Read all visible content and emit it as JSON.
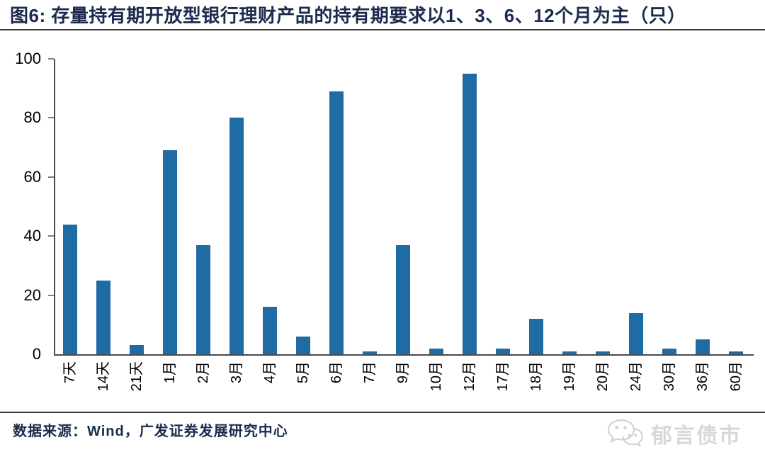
{
  "header": {
    "title": "图6: 存量持有期开放型银行理财产品的持有期要求以1、3、6、12个月为主（只）"
  },
  "chart_data": {
    "type": "bar",
    "title": "存量持有期开放型银行理财产品的持有期要求以1、3、6、12个月为主（只）",
    "categories": [
      "7天",
      "14天",
      "21天",
      "1月",
      "2月",
      "3月",
      "4月",
      "5月",
      "6月",
      "7月",
      "9月",
      "10月",
      "12月",
      "17月",
      "18月",
      "19月",
      "20月",
      "24月",
      "30月",
      "36月",
      "60月"
    ],
    "values": [
      44,
      25,
      3,
      69,
      37,
      80,
      16,
      6,
      89,
      1,
      37,
      2,
      95,
      2,
      12,
      1,
      1,
      14,
      2,
      5,
      1
    ],
    "xlabel": "",
    "ylabel": "",
    "ylim": [
      0,
      100
    ],
    "yticks": [
      0,
      20,
      40,
      60,
      80,
      100
    ],
    "grid": false,
    "legend": false,
    "x_label_rotation": 90
  },
  "footer": {
    "source": "数据来源：Wind，广发证券发展研究中心",
    "watermark_text": "郁言债市",
    "watermark_icon": "wechat-bubbles-icon"
  },
  "colors": {
    "title": "#1B2B4D",
    "bar": "#1F6CA5",
    "axis": "#4A4A4A",
    "tick": "#808080",
    "rule": "#3A3A3A",
    "axis_text": "#000000",
    "watermark": "#D8D8D8"
  }
}
